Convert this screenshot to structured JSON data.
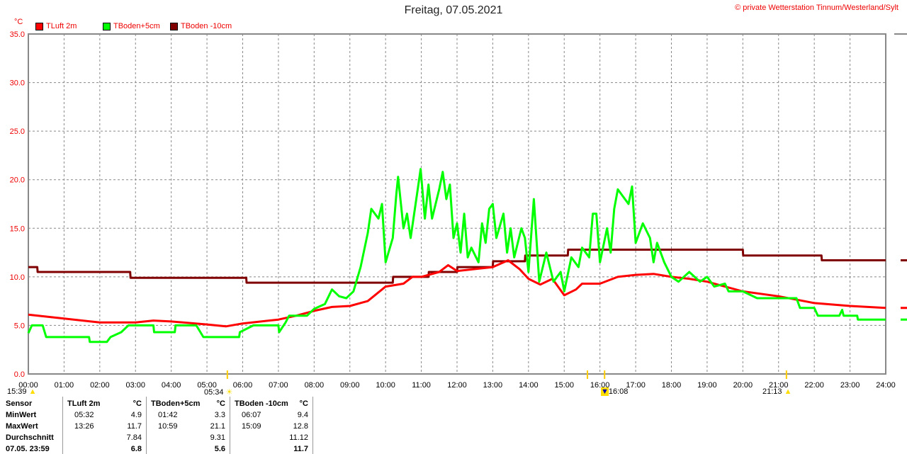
{
  "title": "Freitag, 07.05.2021",
  "copyright_symbol": "©",
  "copyright": "private Wetterstation Tinnum/Westerland/Sylt",
  "events": {
    "moonrise": "15:39",
    "sunrise": "05:34",
    "moonset": "16:08",
    "sunset": "21:13"
  },
  "chart_data": {
    "type": "line",
    "title": "Freitag, 07.05.2021",
    "ylabel": "°C",
    "xlabel": "",
    "ylim": [
      0,
      35
    ],
    "xlim": [
      0,
      24
    ],
    "yticks": [
      "0.0",
      "5.0",
      "10.0",
      "15.0",
      "20.0",
      "25.0",
      "30.0",
      "35.0"
    ],
    "xticks": [
      "00:00",
      "01:00",
      "02:00",
      "03:00",
      "04:00",
      "05:00",
      "06:00",
      "07:00",
      "08:00",
      "09:00",
      "10:00",
      "11:00",
      "12:00",
      "13:00",
      "14:00",
      "15:00",
      "16:00",
      "17:00",
      "18:00",
      "19:00",
      "20:00",
      "21:00",
      "22:00",
      "23:00",
      "24:00"
    ],
    "grid": true,
    "legend": "top-left",
    "series": [
      {
        "name": "TLuft 2m",
        "color": "#ff0000",
        "points": [
          [
            0,
            6.1
          ],
          [
            1,
            5.7
          ],
          [
            2,
            5.3
          ],
          [
            3,
            5.3
          ],
          [
            3.5,
            5.5
          ],
          [
            4,
            5.4
          ],
          [
            5,
            5.1
          ],
          [
            5.53,
            4.9
          ],
          [
            6,
            5.2
          ],
          [
            7,
            5.6
          ],
          [
            7.5,
            6.0
          ],
          [
            8,
            6.5
          ],
          [
            8.5,
            6.9
          ],
          [
            9,
            7.0
          ],
          [
            9.5,
            7.5
          ],
          [
            10,
            9.0
          ],
          [
            10.5,
            9.3
          ],
          [
            10.75,
            10.0
          ],
          [
            11,
            10.0
          ],
          [
            11.5,
            10.5
          ],
          [
            11.75,
            11.2
          ],
          [
            12,
            10.6
          ],
          [
            12.5,
            10.8
          ],
          [
            13,
            11.0
          ],
          [
            13.43,
            11.7
          ],
          [
            13.75,
            10.8
          ],
          [
            14,
            9.8
          ],
          [
            14.33,
            9.2
          ],
          [
            14.67,
            9.8
          ],
          [
            15,
            8.1
          ],
          [
            15.33,
            8.7
          ],
          [
            15.5,
            9.3
          ],
          [
            16,
            9.3
          ],
          [
            16.5,
            10.0
          ],
          [
            17,
            10.2
          ],
          [
            17.5,
            10.3
          ],
          [
            18,
            10.0
          ],
          [
            18.5,
            9.8
          ],
          [
            19,
            9.5
          ],
          [
            19.5,
            9.0
          ],
          [
            20,
            8.5
          ],
          [
            21,
            8.0
          ],
          [
            22,
            7.3
          ],
          [
            23,
            7.0
          ],
          [
            24,
            6.8
          ]
        ]
      },
      {
        "name": "TBoden+5cm",
        "color": "#00ff00",
        "points": [
          [
            0,
            4.2
          ],
          [
            0.1,
            5.0
          ],
          [
            0.4,
            5.0
          ],
          [
            0.5,
            3.8
          ],
          [
            1.7,
            3.8
          ],
          [
            1.72,
            3.3
          ],
          [
            2.2,
            3.3
          ],
          [
            2.3,
            3.8
          ],
          [
            2.6,
            4.3
          ],
          [
            2.8,
            5.0
          ],
          [
            3.5,
            5.0
          ],
          [
            3.52,
            4.3
          ],
          [
            4.1,
            4.3
          ],
          [
            4.12,
            5.0
          ],
          [
            4.7,
            5.0
          ],
          [
            4.9,
            3.8
          ],
          [
            5.9,
            3.8
          ],
          [
            5.92,
            4.3
          ],
          [
            6.3,
            5.0
          ],
          [
            7.0,
            5.0
          ],
          [
            7.02,
            4.3
          ],
          [
            7.2,
            5.3
          ],
          [
            7.3,
            6.0
          ],
          [
            7.8,
            6.0
          ],
          [
            8.0,
            6.7
          ],
          [
            8.3,
            7.2
          ],
          [
            8.5,
            8.7
          ],
          [
            8.7,
            8.0
          ],
          [
            8.9,
            7.8
          ],
          [
            9.1,
            8.5
          ],
          [
            9.3,
            11
          ],
          [
            9.5,
            14.5
          ],
          [
            9.6,
            17
          ],
          [
            9.8,
            16
          ],
          [
            9.9,
            17.5
          ],
          [
            10.0,
            11.5
          ],
          [
            10.2,
            14
          ],
          [
            10.3,
            18.5
          ],
          [
            10.35,
            20.3
          ],
          [
            10.5,
            15
          ],
          [
            10.6,
            16.5
          ],
          [
            10.7,
            14
          ],
          [
            10.9,
            19
          ],
          [
            10.98,
            21.1
          ],
          [
            11.1,
            16
          ],
          [
            11.2,
            19.5
          ],
          [
            11.3,
            16
          ],
          [
            11.5,
            19
          ],
          [
            11.6,
            20.8
          ],
          [
            11.7,
            18
          ],
          [
            11.8,
            19.5
          ],
          [
            11.9,
            14
          ],
          [
            12.0,
            15.5
          ],
          [
            12.1,
            12.5
          ],
          [
            12.2,
            16.5
          ],
          [
            12.3,
            12
          ],
          [
            12.4,
            13
          ],
          [
            12.6,
            11.5
          ],
          [
            12.7,
            15.5
          ],
          [
            12.8,
            13.5
          ],
          [
            12.9,
            17
          ],
          [
            13.0,
            17.5
          ],
          [
            13.1,
            14
          ],
          [
            13.3,
            16.5
          ],
          [
            13.4,
            12.5
          ],
          [
            13.5,
            15
          ],
          [
            13.6,
            12
          ],
          [
            13.8,
            15
          ],
          [
            13.9,
            14
          ],
          [
            14.0,
            10.5
          ],
          [
            14.15,
            18
          ],
          [
            14.3,
            9.5
          ],
          [
            14.5,
            12.5
          ],
          [
            14.7,
            9.5
          ],
          [
            14.9,
            10.5
          ],
          [
            15.0,
            8.5
          ],
          [
            15.2,
            12
          ],
          [
            15.4,
            11
          ],
          [
            15.5,
            13
          ],
          [
            15.7,
            12
          ],
          [
            15.8,
            16.5
          ],
          [
            15.9,
            16.5
          ],
          [
            16.0,
            11.5
          ],
          [
            16.2,
            15
          ],
          [
            16.3,
            12.5
          ],
          [
            16.4,
            17
          ],
          [
            16.5,
            19
          ],
          [
            16.6,
            18.5
          ],
          [
            16.8,
            17.5
          ],
          [
            16.9,
            19.3
          ],
          [
            17.0,
            13.5
          ],
          [
            17.2,
            15.5
          ],
          [
            17.4,
            14
          ],
          [
            17.5,
            11.5
          ],
          [
            17.6,
            13.5
          ],
          [
            17.8,
            11.5
          ],
          [
            18.0,
            10
          ],
          [
            18.2,
            9.5
          ],
          [
            18.5,
            10.5
          ],
          [
            18.8,
            9.5
          ],
          [
            19.0,
            10
          ],
          [
            19.2,
            9.0
          ],
          [
            19.5,
            9.3
          ],
          [
            19.6,
            8.5
          ],
          [
            20.0,
            8.5
          ],
          [
            20.4,
            7.8
          ],
          [
            21.5,
            7.8
          ],
          [
            21.6,
            6.8
          ],
          [
            22.0,
            6.8
          ],
          [
            22.1,
            6.0
          ],
          [
            22.7,
            6.0
          ],
          [
            22.78,
            6.6
          ],
          [
            22.82,
            6.0
          ],
          [
            23.2,
            6.0
          ],
          [
            23.22,
            5.6
          ],
          [
            24,
            5.6
          ]
        ]
      },
      {
        "name": "TBoden -10cm",
        "color": "#800000",
        "points": [
          [
            0,
            11.0
          ],
          [
            0.25,
            11.0
          ],
          [
            0.26,
            10.5
          ],
          [
            2.85,
            10.5
          ],
          [
            2.86,
            9.9
          ],
          [
            6.1,
            9.9
          ],
          [
            6.11,
            9.4
          ],
          [
            10.2,
            9.4
          ],
          [
            10.21,
            10.0
          ],
          [
            11.2,
            10.0
          ],
          [
            11.21,
            10.5
          ],
          [
            12.0,
            10.5
          ],
          [
            12.01,
            11.0
          ],
          [
            13.0,
            11.0
          ],
          [
            13.01,
            11.6
          ],
          [
            13.9,
            11.6
          ],
          [
            13.91,
            12.2
          ],
          [
            15.1,
            12.2
          ],
          [
            15.11,
            12.8
          ],
          [
            20.0,
            12.8
          ],
          [
            20.01,
            12.2
          ],
          [
            22.2,
            12.2
          ],
          [
            22.21,
            11.7
          ],
          [
            24,
            11.7
          ]
        ]
      }
    ]
  },
  "stats": {
    "headers": [
      "Sensor",
      "TLuft 2m",
      "°C",
      "TBoden+5cm",
      "°C",
      "TBoden -10cm",
      "°C"
    ],
    "rows": [
      {
        "label": "MinWert",
        "c": [
          [
            "05:32",
            "4.9"
          ],
          [
            "01:42",
            "3.3"
          ],
          [
            "06:07",
            "9.4"
          ]
        ]
      },
      {
        "label": "MaxWert",
        "c": [
          [
            "13:26",
            "11.7"
          ],
          [
            "10:59",
            "21.1"
          ],
          [
            "15:09",
            "12.8"
          ]
        ]
      },
      {
        "label": "Durchschnitt",
        "c": [
          [
            "",
            "7.84"
          ],
          [
            "",
            "9.31"
          ],
          [
            "",
            "11.12"
          ]
        ]
      },
      {
        "label": "07.05. 23:59",
        "c": [
          [
            "",
            "6.8"
          ],
          [
            "",
            "5.6"
          ],
          [
            "",
            "11.7"
          ]
        ]
      }
    ]
  }
}
